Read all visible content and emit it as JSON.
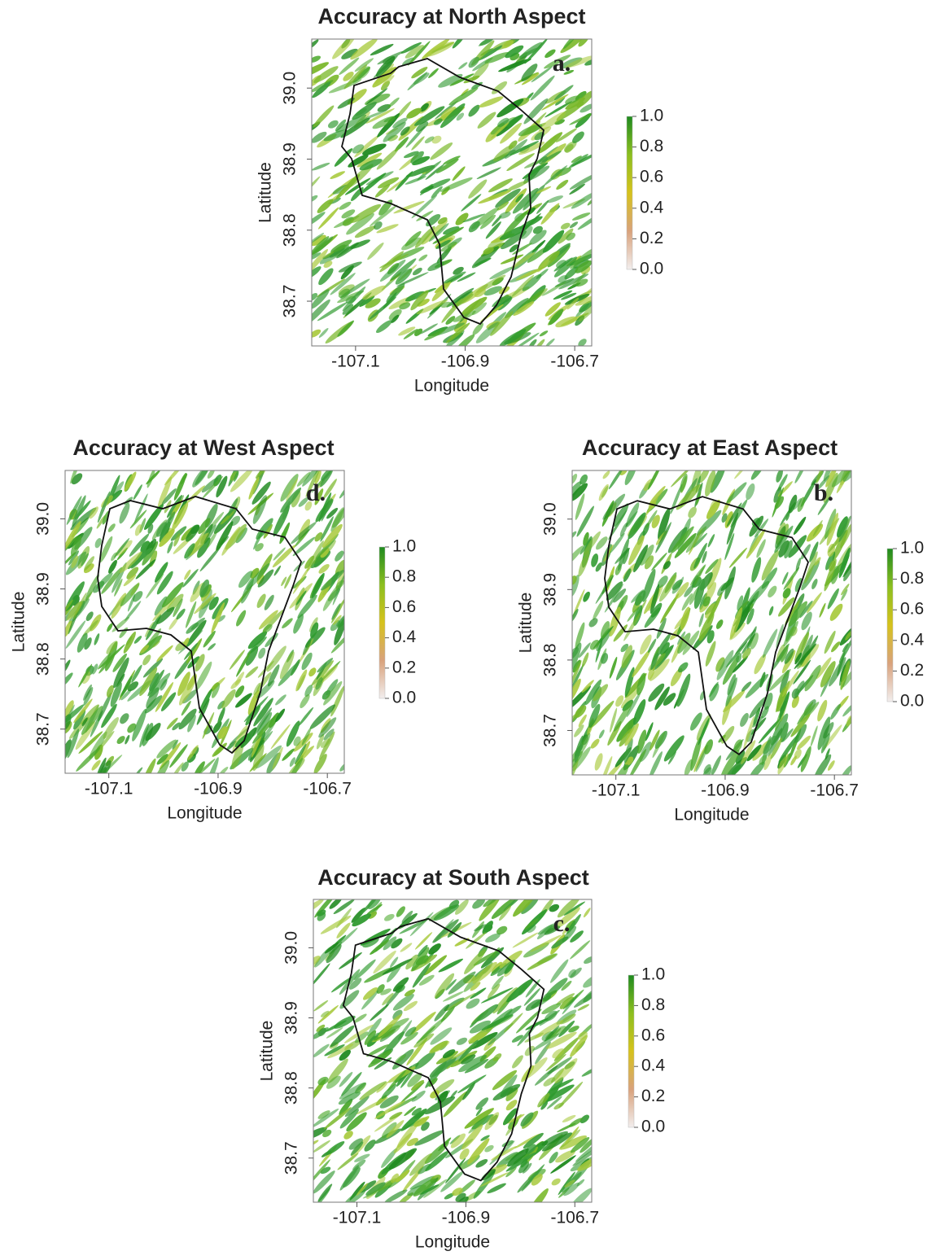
{
  "panels": [
    {
      "title": "Accuracy at North Aspect",
      "letter": "a.",
      "xlabel": "Longitude",
      "ylabel": "Latitude",
      "xlim": [
        -107.18,
        -106.669
      ],
      "ylim": [
        38.637,
        39.069
      ],
      "xticks": [
        -107.1,
        -106.9,
        -106.7
      ],
      "yticks": [
        {
          "value": 38.7,
          "label": "38.7"
        },
        {
          "value": 38.8,
          "label": "38.8"
        },
        {
          "value": 38.9,
          "label": "38.9"
        },
        {
          "value": 39,
          "label": "39.0"
        }
      ],
      "colorbar": {
        "lim": [
          0,
          1
        ],
        "ticks": [
          {
            "value": 0,
            "label": "0.0"
          },
          0.2,
          0.4,
          0.6,
          0.8,
          {
            "value": 1,
            "label": "1.0"
          }
        ],
        "colors": [
          "#f2eeee",
          "#d9a27c",
          "#d6c21c",
          "#8cbf1f",
          "#1f8a1f"
        ]
      }
    },
    {
      "title": "Accuracy at West Aspect",
      "letter": "d.",
      "xlabel": "Longitude",
      "ylabel": "Latitude",
      "xlim": [
        -107.18,
        -106.669
      ],
      "ylim": [
        38.637,
        39.069
      ],
      "xticks": [
        -107.1,
        -106.9,
        -106.7
      ],
      "yticks": [
        {
          "value": 38.7,
          "label": "38.7"
        },
        {
          "value": 38.8,
          "label": "38.8"
        },
        {
          "value": 38.9,
          "label": "38.9"
        },
        {
          "value": 39,
          "label": "39.0"
        }
      ],
      "colorbar": {
        "lim": [
          0,
          1
        ],
        "ticks": [
          {
            "value": 0,
            "label": "0.0"
          },
          0.2,
          0.4,
          0.6,
          0.8,
          {
            "value": 1,
            "label": "1.0"
          }
        ],
        "colors": [
          "#f2eeee",
          "#d9a27c",
          "#d6c21c",
          "#8cbf1f",
          "#1f8a1f"
        ]
      }
    },
    {
      "title": "Accuracy at East Aspect",
      "letter": "b.",
      "xlabel": "Longitude",
      "ylabel": "Latitude",
      "xlim": [
        -107.18,
        -106.669
      ],
      "ylim": [
        38.637,
        39.069
      ],
      "xticks": [
        -107.1,
        -106.9,
        -106.7
      ],
      "yticks": [
        {
          "value": 38.7,
          "label": "38.7"
        },
        {
          "value": 38.8,
          "label": "38.8"
        },
        {
          "value": 38.9,
          "label": "38.9"
        },
        {
          "value": 39,
          "label": "39.0"
        }
      ],
      "colorbar": {
        "lim": [
          0,
          1
        ],
        "ticks": [
          {
            "value": 0,
            "label": "0.0"
          },
          0.2,
          0.4,
          0.6,
          0.8,
          {
            "value": 1,
            "label": "1.0"
          }
        ],
        "colors": [
          "#f2eeee",
          "#d9a27c",
          "#d6c21c",
          "#8cbf1f",
          "#1f8a1f"
        ]
      }
    },
    {
      "title": "Accuracy at South Aspect",
      "letter": "c.",
      "xlabel": "Longitude",
      "ylabel": "Latitude",
      "xlim": [
        -107.18,
        -106.669
      ],
      "ylim": [
        38.637,
        39.069
      ],
      "xticks": [
        -107.1,
        -106.9,
        -106.7
      ],
      "yticks": [
        {
          "value": 38.7,
          "label": "38.7"
        },
        {
          "value": 38.8,
          "label": "38.8"
        },
        {
          "value": 38.9,
          "label": "38.9"
        },
        {
          "value": 39,
          "label": "39.0"
        }
      ],
      "colorbar": {
        "lim": [
          0,
          1
        ],
        "ticks": [
          {
            "value": 0,
            "label": "0.0"
          },
          0.2,
          0.4,
          0.6,
          0.8,
          {
            "value": 1,
            "label": "1.0"
          }
        ],
        "colors": [
          "#f2eeee",
          "#d9a27c",
          "#d6c21c",
          "#8cbf1f",
          "#1f8a1f"
        ]
      }
    }
  ]
}
